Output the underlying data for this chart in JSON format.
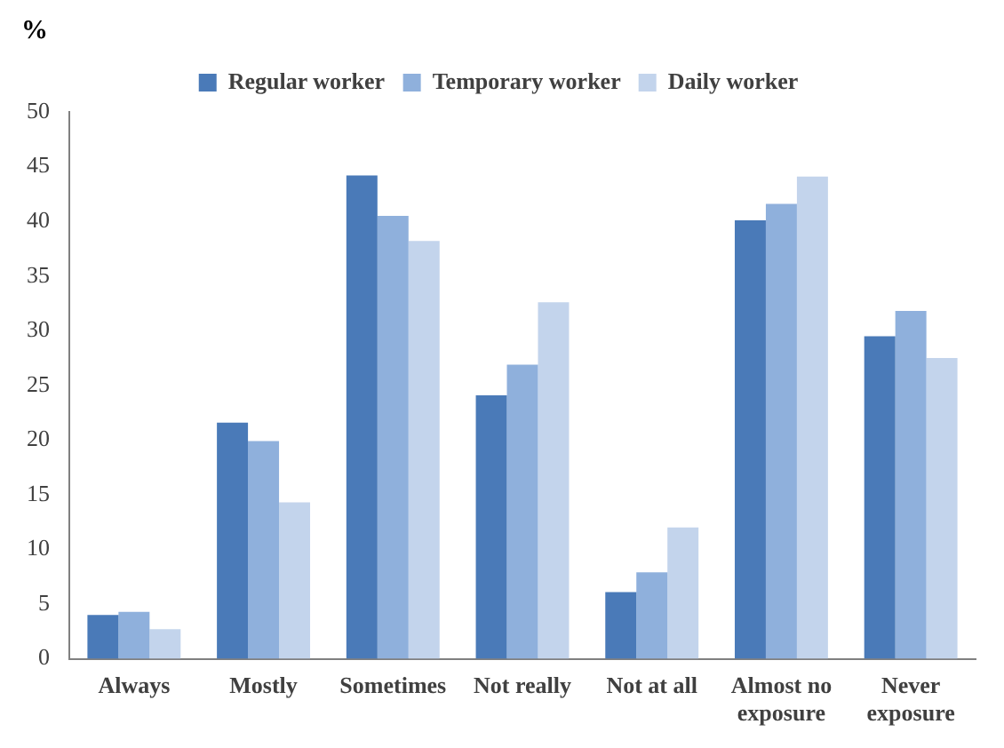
{
  "chart_data": {
    "type": "bar",
    "ylabel": "%",
    "categories": [
      "Always",
      "Mostly",
      "Sometimes",
      "Not really",
      "Not at all",
      "Almost no exposure",
      "Never exposure"
    ],
    "series": [
      {
        "name": "Regular worker",
        "color": "#4a7ab8",
        "values": [
          4.0,
          21.6,
          44.2,
          24.1,
          6.1,
          40.1,
          29.5
        ]
      },
      {
        "name": "Temporary worker",
        "color": "#8fb0dc",
        "values": [
          4.3,
          19.9,
          40.5,
          26.9,
          7.9,
          41.6,
          31.8
        ]
      },
      {
        "name": "Daily worker",
        "color": "#c3d4ec",
        "values": [
          2.7,
          14.3,
          38.2,
          32.6,
          12.0,
          44.1,
          27.5
        ]
      }
    ],
    "ylim": [
      0,
      50
    ],
    "yticks": [
      0,
      5,
      10,
      15,
      20,
      25,
      30,
      35,
      40,
      45,
      50
    ],
    "grid": false,
    "legend": "top"
  }
}
